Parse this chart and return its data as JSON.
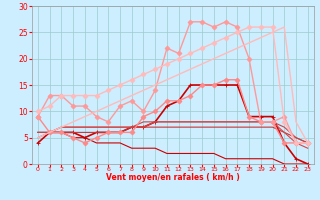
{
  "xlabel": "Vent moyen/en rafales ( km/h )",
  "xlim": [
    -0.5,
    23.5
  ],
  "ylim": [
    0,
    30
  ],
  "yticks": [
    0,
    5,
    10,
    15,
    20,
    25,
    30
  ],
  "xticks": [
    0,
    1,
    2,
    3,
    4,
    5,
    6,
    7,
    8,
    9,
    10,
    11,
    12,
    13,
    14,
    15,
    16,
    17,
    18,
    19,
    20,
    21,
    22,
    23
  ],
  "bg_color": "#cceeff",
  "grid_color": "#99cccc",
  "series": [
    {
      "x": [
        0,
        1,
        2,
        3,
        4,
        5,
        6,
        7,
        8,
        9,
        10,
        11,
        12,
        13,
        14,
        15,
        16,
        17,
        18,
        19,
        20,
        21,
        22,
        23
      ],
      "y": [
        4,
        6,
        6,
        6,
        5,
        6,
        6,
        6,
        7,
        7,
        8,
        11,
        12,
        15,
        15,
        15,
        15,
        15,
        9,
        9,
        9,
        4,
        1,
        0
      ],
      "color": "#cc0000",
      "lw": 1.2,
      "marker": "+",
      "ms": 3.5
    },
    {
      "x": [
        0,
        1,
        2,
        3,
        4,
        5,
        6,
        7,
        8,
        9,
        10,
        11,
        12,
        13,
        14,
        15,
        16,
        17,
        18,
        19,
        20,
        21,
        22,
        23
      ],
      "y": [
        6,
        6,
        6,
        5,
        5,
        4,
        4,
        4,
        3,
        3,
        3,
        2,
        2,
        2,
        2,
        2,
        1,
        1,
        1,
        1,
        1,
        0,
        0,
        0
      ],
      "color": "#cc0000",
      "lw": 0.8,
      "marker": null,
      "ms": 0
    },
    {
      "x": [
        0,
        1,
        2,
        3,
        4,
        5,
        6,
        7,
        8,
        9,
        10,
        11,
        12,
        13,
        14,
        15,
        16,
        17,
        18,
        19,
        20,
        21,
        22,
        23
      ],
      "y": [
        5,
        6,
        6,
        6,
        6,
        6,
        6,
        6,
        7,
        7,
        7,
        7,
        7,
        7,
        7,
        7,
        7,
        7,
        7,
        7,
        7,
        6,
        5,
        4
      ],
      "color": "#cc3333",
      "lw": 0.8,
      "marker": null,
      "ms": 0
    },
    {
      "x": [
        0,
        1,
        2,
        3,
        4,
        5,
        6,
        7,
        8,
        9,
        10,
        11,
        12,
        13,
        14,
        15,
        16,
        17,
        18,
        19,
        20,
        21,
        22,
        23
      ],
      "y": [
        6,
        6,
        7,
        7,
        7,
        7,
        7,
        7,
        7,
        7,
        8,
        8,
        8,
        8,
        8,
        8,
        8,
        8,
        8,
        8,
        8,
        6,
        4,
        3
      ],
      "color": "#dd4444",
      "lw": 0.8,
      "marker": null,
      "ms": 0
    },
    {
      "x": [
        0,
        1,
        2,
        3,
        4,
        5,
        6,
        7,
        8,
        9,
        10,
        11,
        12,
        13,
        14,
        15,
        16,
        17,
        18,
        19,
        20,
        21,
        22,
        23
      ],
      "y": [
        6,
        6,
        7,
        7,
        7,
        7,
        7,
        7,
        7,
        8,
        8,
        8,
        8,
        8,
        8,
        8,
        8,
        8,
        8,
        8,
        8,
        7,
        5,
        4
      ],
      "color": "#cc4444",
      "lw": 0.8,
      "marker": null,
      "ms": 0
    },
    {
      "x": [
        0,
        1,
        2,
        3,
        4,
        5,
        6,
        7,
        8,
        9,
        10,
        11,
        12,
        13,
        14,
        15,
        16,
        17,
        18,
        19,
        20,
        21,
        22,
        23
      ],
      "y": [
        9,
        6,
        6,
        5,
        4,
        5,
        6,
        6,
        6,
        9,
        10,
        12,
        12,
        13,
        15,
        15,
        16,
        16,
        9,
        8,
        8,
        4,
        4,
        4
      ],
      "color": "#ff8888",
      "lw": 1.0,
      "marker": "D",
      "ms": 2.5
    },
    {
      "x": [
        0,
        1,
        2,
        3,
        4,
        5,
        6,
        7,
        8,
        9,
        10,
        11,
        12,
        13,
        14,
        15,
        16,
        17,
        18,
        19,
        20,
        21,
        22,
        23
      ],
      "y": [
        9,
        13,
        13,
        11,
        11,
        9,
        8,
        11,
        12,
        10,
        14,
        22,
        21,
        27,
        27,
        26,
        27,
        26,
        20,
        8,
        8,
        9,
        4,
        4
      ],
      "color": "#ff9999",
      "lw": 1.0,
      "marker": "D",
      "ms": 2.5
    },
    {
      "x": [
        0,
        1,
        2,
        3,
        4,
        5,
        6,
        7,
        8,
        9,
        10,
        11,
        12,
        13,
        14,
        15,
        16,
        17,
        18,
        19,
        20,
        21,
        22,
        23
      ],
      "y": [
        5,
        6,
        7,
        8,
        9,
        10,
        11,
        12,
        13,
        14,
        15,
        16,
        17,
        18,
        19,
        20,
        21,
        22,
        23,
        24,
        25,
        26,
        8,
        4
      ],
      "color": "#ffbbbb",
      "lw": 1.0,
      "marker": null,
      "ms": 0
    },
    {
      "x": [
        0,
        1,
        2,
        3,
        4,
        5,
        6,
        7,
        8,
        9,
        10,
        11,
        12,
        13,
        14,
        15,
        16,
        17,
        18,
        19,
        20,
        21,
        22,
        23
      ],
      "y": [
        10,
        11,
        13,
        13,
        13,
        13,
        14,
        15,
        16,
        17,
        18,
        19,
        20,
        21,
        22,
        23,
        24,
        25,
        26,
        26,
        26,
        8,
        4,
        4
      ],
      "color": "#ffbbbb",
      "lw": 1.0,
      "marker": "D",
      "ms": 2.5
    }
  ]
}
